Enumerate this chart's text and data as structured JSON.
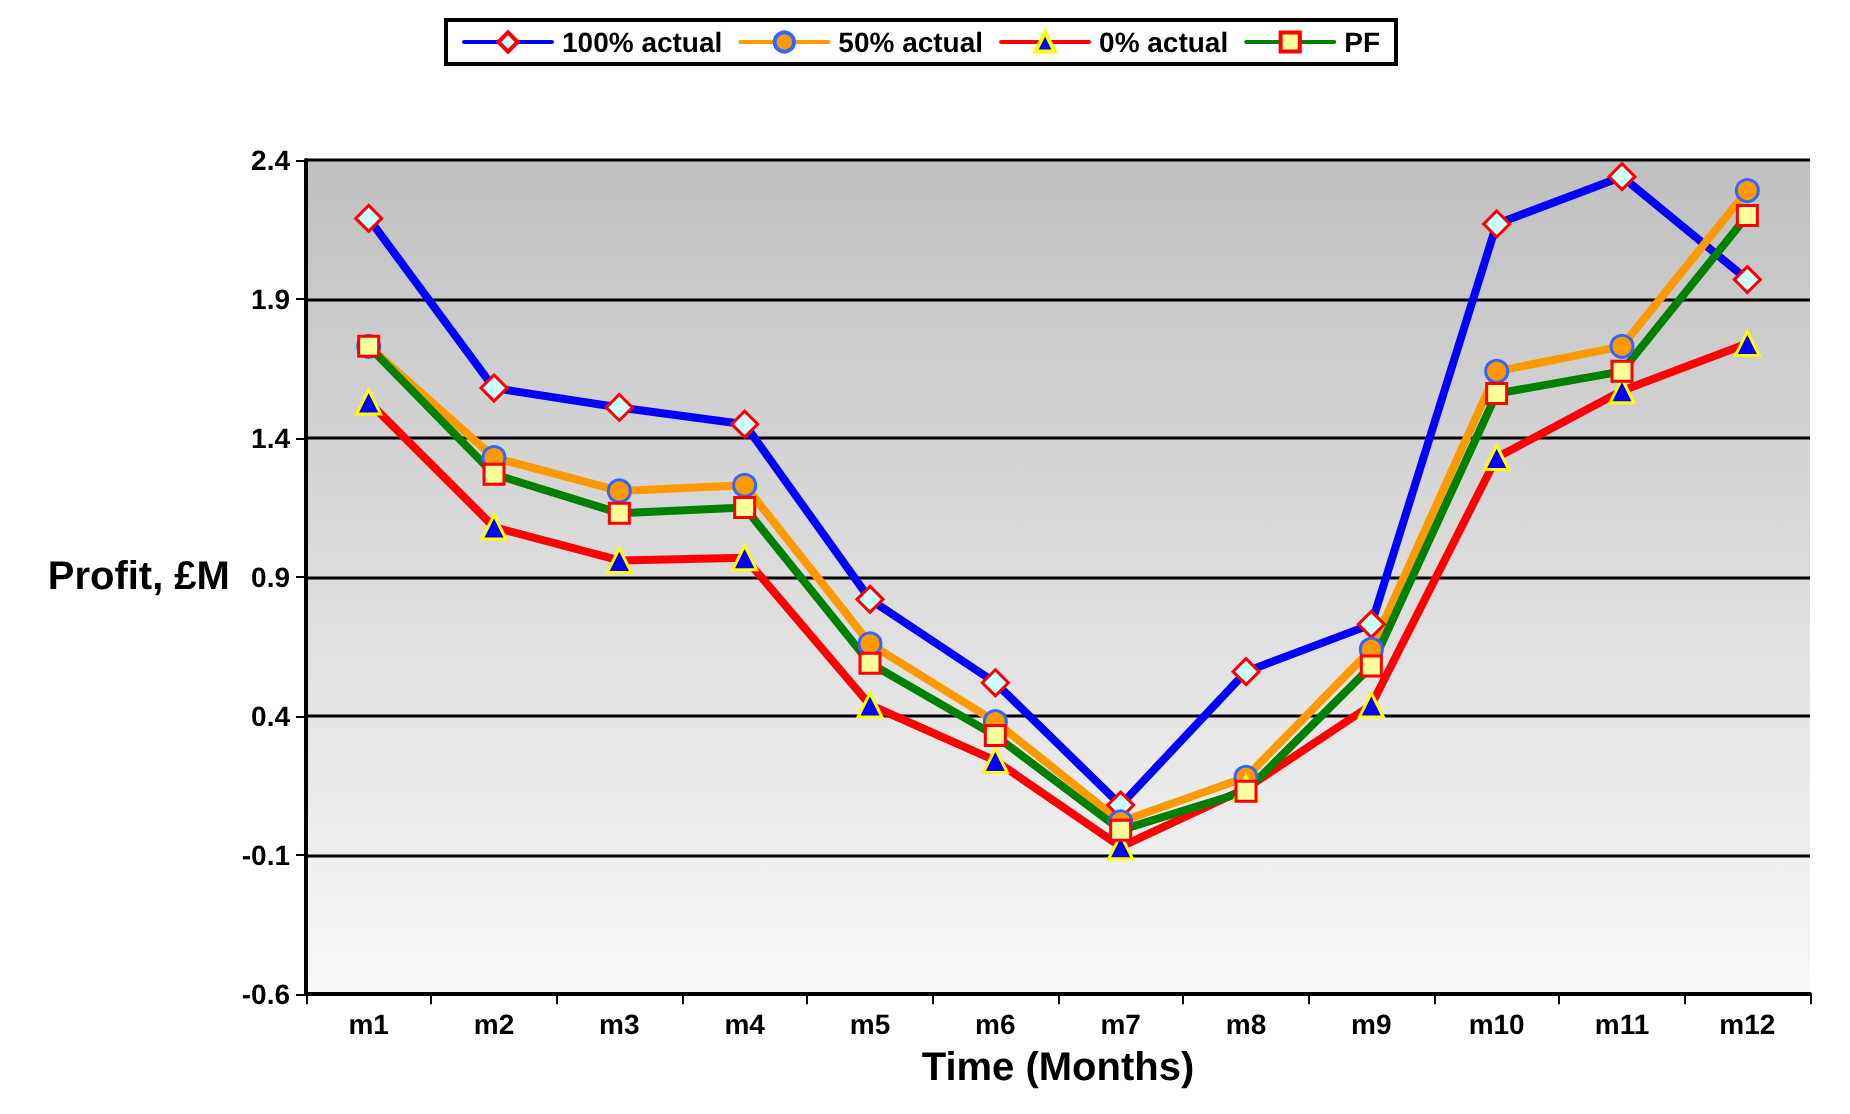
{
  "chart_data": {
    "type": "line",
    "xlabel": "Time (Months)",
    "ylabel": "Profit, £M",
    "categories": [
      "m1",
      "m2",
      "m3",
      "m4",
      "m5",
      "m6",
      "m7",
      "m8",
      "m9",
      "m10",
      "m11",
      "m12"
    ],
    "series": [
      {
        "name": "100% actual",
        "color": "#0000ff",
        "marker": "diamond",
        "values": [
          2.19,
          1.58,
          1.51,
          1.45,
          0.82,
          0.52,
          0.08,
          0.56,
          0.73,
          2.17,
          2.34,
          1.97
        ]
      },
      {
        "name": "50% actual",
        "color": "#ff9900",
        "marker": "circle",
        "values": [
          1.73,
          1.33,
          1.21,
          1.23,
          0.66,
          0.38,
          0.02,
          0.18,
          0.64,
          1.64,
          1.73,
          2.29
        ]
      },
      {
        "name": "0% actual",
        "color": "#ff0000",
        "marker": "triangle",
        "values": [
          1.53,
          1.08,
          0.96,
          0.97,
          0.44,
          0.24,
          -0.07,
          0.14,
          0.44,
          1.33,
          1.57,
          1.74
        ]
      },
      {
        "name": "PF",
        "color": "#008000",
        "marker": "square",
        "values": [
          1.73,
          1.27,
          1.13,
          1.15,
          0.59,
          0.33,
          -0.01,
          0.13,
          0.58,
          1.56,
          1.64,
          2.2
        ]
      }
    ],
    "ylim": [
      -0.6,
      2.4
    ],
    "yticks": [
      -0.6,
      -0.1,
      0.4,
      0.9,
      1.4,
      1.9,
      2.4
    ],
    "grid": "y",
    "legend": "top",
    "line_style": "solid"
  }
}
